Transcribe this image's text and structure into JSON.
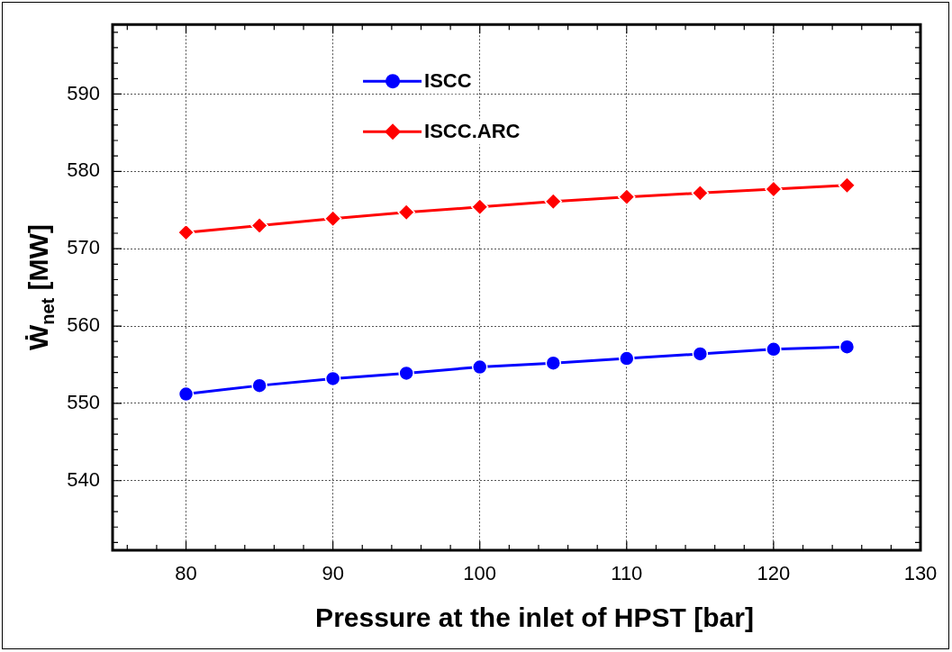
{
  "chart_data": {
    "type": "line",
    "xlabel": "Pressure at the inlet of HPST [bar]",
    "ylabel": "Ẇ$_{net}$ [MW]",
    "x": [
      80,
      85,
      90,
      95,
      100,
      105,
      110,
      115,
      120,
      125
    ],
    "series": [
      {
        "name": "ISCC",
        "color": "#0000ff",
        "marker": "circle",
        "values": [
          551.2,
          552.3,
          553.2,
          553.9,
          554.7,
          555.2,
          555.8,
          556.4,
          557.0,
          557.3
        ]
      },
      {
        "name": "ISCC.ARC",
        "color": "#ff0000",
        "marker": "diamond",
        "values": [
          572.1,
          573.0,
          573.9,
          574.7,
          575.4,
          576.1,
          576.7,
          577.2,
          577.7,
          578.2
        ]
      }
    ],
    "xlim": [
      75,
      130
    ],
    "ylim": [
      531,
      599
    ],
    "xticks": [
      {
        "value": 76,
        "label": null
      },
      {
        "value": 78,
        "label": null
      },
      80,
      {
        "value": 82,
        "label": null
      },
      {
        "value": 84,
        "label": null
      },
      {
        "value": 86,
        "label": null
      },
      {
        "value": 88,
        "label": null
      },
      90,
      {
        "value": 92,
        "label": null
      },
      {
        "value": 94,
        "label": null
      },
      {
        "value": 96,
        "label": null
      },
      {
        "value": 98,
        "label": null
      },
      100,
      {
        "value": 102,
        "label": null
      },
      {
        "value": 104,
        "label": null
      },
      {
        "value": 106,
        "label": null
      },
      {
        "value": 108,
        "label": null
      },
      110,
      {
        "value": 112,
        "label": null
      },
      {
        "value": 114,
        "label": null
      },
      {
        "value": 116,
        "label": null
      },
      {
        "value": 118,
        "label": null
      },
      120,
      {
        "value": 122,
        "label": null
      },
      {
        "value": 124,
        "label": null
      },
      {
        "value": 126,
        "label": null
      },
      {
        "value": 128,
        "label": null
      },
      130
    ],
    "yticks": [
      {
        "value": 532,
        "label": null
      },
      {
        "value": 534,
        "label": null
      },
      {
        "value": 536,
        "label": null
      },
      {
        "value": 538,
        "label": null
      },
      540,
      {
        "value": 542,
        "label": null
      },
      {
        "value": 544,
        "label": null
      },
      {
        "value": 546,
        "label": null
      },
      {
        "value": 548,
        "label": null
      },
      550,
      {
        "value": 552,
        "label": null
      },
      {
        "value": 554,
        "label": null
      },
      {
        "value": 556,
        "label": null
      },
      {
        "value": 558,
        "label": null
      },
      560,
      {
        "value": 562,
        "label": null
      },
      {
        "value": 564,
        "label": null
      },
      {
        "value": 566,
        "label": null
      },
      {
        "value": 568,
        "label": null
      },
      570,
      {
        "value": 572,
        "label": null
      },
      {
        "value": 574,
        "label": null
      },
      {
        "value": 576,
        "label": null
      },
      {
        "value": 578,
        "label": null
      },
      580,
      {
        "value": 582,
        "label": null
      },
      {
        "value": 584,
        "label": null
      },
      {
        "value": 586,
        "label": null
      },
      {
        "value": 588,
        "label": null
      },
      590,
      {
        "value": 592,
        "label": null
      },
      {
        "value": 594,
        "label": null
      },
      {
        "value": 596,
        "label": null
      },
      {
        "value": 598,
        "label": null
      }
    ],
    "grid": true,
    "legend": "top",
    "line_style": "solid"
  }
}
